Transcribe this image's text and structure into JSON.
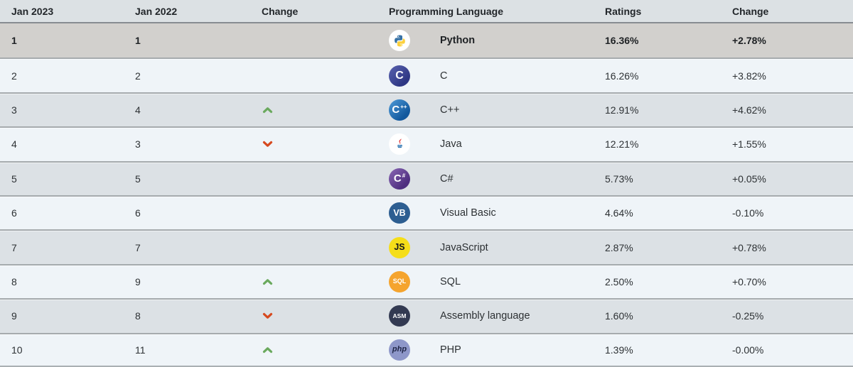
{
  "colors": {
    "header_bg": "#dce1e4",
    "row_light_bg": "#eff4f8",
    "row_gray_bg": "#dce1e5",
    "top_rank_highlight_bg": "#d2d0cd",
    "row_separator": "#a6abae",
    "trend_up_green": "#6aa95d",
    "trend_down_red": "#d6491f",
    "js_yellow": "#f5de19",
    "sql_orange": "#f5a42e",
    "php_purple": "#8e97c9"
  },
  "table": {
    "headers": [
      "Jan 2023",
      "Jan 2022",
      "Change",
      "Programming Language",
      "Ratings",
      "Change"
    ],
    "rows": [
      {
        "r2023": "1",
        "r2022": "1",
        "trend": "none",
        "icon": "python",
        "icon_base": "",
        "icon_sub": "",
        "language": "Python",
        "ratings": "16.36%",
        "change": "+2.78%",
        "highlight": true
      },
      {
        "r2023": "2",
        "r2022": "2",
        "trend": "none",
        "icon": "c",
        "icon_base": "C",
        "icon_sub": "",
        "language": "C",
        "ratings": "16.26%",
        "change": "+3.82%",
        "highlight": false
      },
      {
        "r2023": "3",
        "r2022": "4",
        "trend": "up",
        "icon": "cpp",
        "icon_base": "C",
        "icon_sub": "++",
        "language": "C++",
        "ratings": "12.91%",
        "change": "+4.62%",
        "highlight": false
      },
      {
        "r2023": "4",
        "r2022": "3",
        "trend": "down",
        "icon": "java",
        "icon_base": "",
        "icon_sub": "",
        "language": "Java",
        "ratings": "12.21%",
        "change": "+1.55%",
        "highlight": false
      },
      {
        "r2023": "5",
        "r2022": "5",
        "trend": "none",
        "icon": "csharp",
        "icon_base": "C",
        "icon_sub": "#",
        "language": "C#",
        "ratings": "5.73%",
        "change": "+0.05%",
        "highlight": false
      },
      {
        "r2023": "6",
        "r2022": "6",
        "trend": "none",
        "icon": "vb",
        "icon_base": "VB",
        "icon_sub": "",
        "language": "Visual Basic",
        "ratings": "4.64%",
        "change": "-0.10%",
        "highlight": false
      },
      {
        "r2023": "7",
        "r2022": "7",
        "trend": "none",
        "icon": "js",
        "icon_base": "JS",
        "icon_sub": "",
        "language": "JavaScript",
        "ratings": "2.87%",
        "change": "+0.78%",
        "highlight": false
      },
      {
        "r2023": "8",
        "r2022": "9",
        "trend": "up",
        "icon": "sql",
        "icon_base": "SQL",
        "icon_sub": "",
        "language": "SQL",
        "ratings": "2.50%",
        "change": "+0.70%",
        "highlight": false
      },
      {
        "r2023": "9",
        "r2022": "8",
        "trend": "down",
        "icon": "asm",
        "icon_base": "ASM",
        "icon_sub": "",
        "language": "Assembly language",
        "ratings": "1.60%",
        "change": "-0.25%",
        "highlight": false
      },
      {
        "r2023": "10",
        "r2022": "11",
        "trend": "up",
        "icon": "php",
        "icon_base": "php",
        "icon_sub": "",
        "language": "PHP",
        "ratings": "1.39%",
        "change": "-0.00%",
        "highlight": false
      }
    ]
  },
  "chart_data": {
    "type": "table",
    "columns": [
      "Jan 2023",
      "Jan 2022",
      "Change",
      "Programming Language",
      "Ratings",
      "Change"
    ],
    "rows": [
      [
        "1",
        "1",
        "",
        "Python",
        "16.36%",
        "+2.78%"
      ],
      [
        "2",
        "2",
        "",
        "C",
        "16.26%",
        "+3.82%"
      ],
      [
        "3",
        "4",
        "up",
        "C++",
        "12.91%",
        "+4.62%"
      ],
      [
        "4",
        "3",
        "down",
        "Java",
        "12.21%",
        "+1.55%"
      ],
      [
        "5",
        "5",
        "",
        "C#",
        "5.73%",
        "+0.05%"
      ],
      [
        "6",
        "6",
        "",
        "Visual Basic",
        "4.64%",
        "-0.10%"
      ],
      [
        "7",
        "7",
        "",
        "JavaScript",
        "2.87%",
        "+0.78%"
      ],
      [
        "8",
        "9",
        "up",
        "SQL",
        "2.50%",
        "+0.70%"
      ],
      [
        "9",
        "8",
        "down",
        "Assembly language",
        "1.60%",
        "-0.25%"
      ],
      [
        "10",
        "11",
        "up",
        "PHP",
        "1.39%",
        "-0.00%"
      ]
    ]
  }
}
